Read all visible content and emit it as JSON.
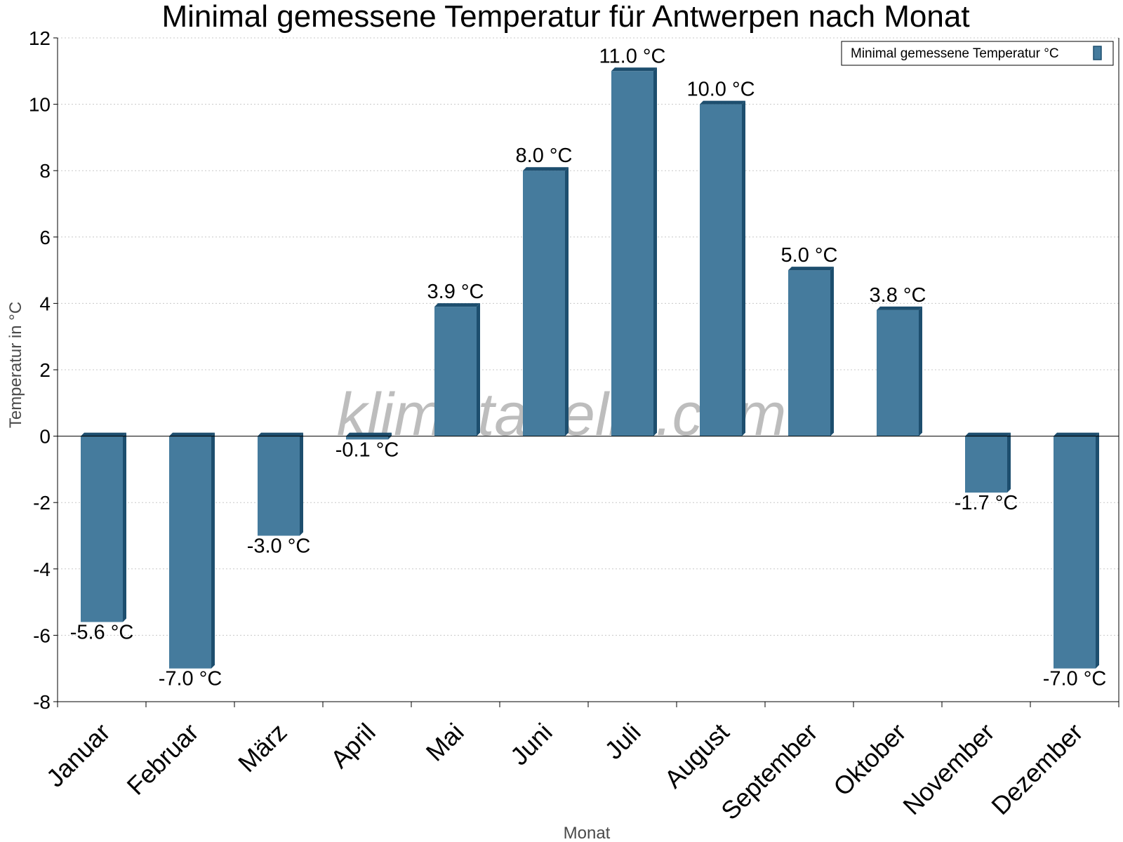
{
  "chart_data": {
    "type": "bar",
    "title": "Minimal gemessene Temperatur für Antwerpen nach Monat",
    "xlabel": "Monat",
    "ylabel": "Temperatur in °C",
    "ylim": [
      -8,
      12
    ],
    "yticks": [
      12,
      10,
      8,
      6,
      4,
      2,
      0,
      -2,
      -4,
      -6,
      -8
    ],
    "grid": true,
    "legend_position": "top-right",
    "watermark": "klimatabelle.com",
    "categories": [
      "Januar",
      "Februar",
      "März",
      "April",
      "Mai",
      "Juni",
      "Juli",
      "August",
      "September",
      "Oktober",
      "November",
      "Dezember"
    ],
    "series": [
      {
        "name": "Minimal gemessene Temperatur °C",
        "values": [
          -5.6,
          -7.0,
          -3.0,
          -0.1,
          3.9,
          8.0,
          11.0,
          10.0,
          5.0,
          3.8,
          -1.7,
          -7.0
        ],
        "labels": [
          "-5.6 °C",
          "-7.0 °C",
          "-3.0 °C",
          "-0.1 °C",
          "3.9 °C",
          "8.0 °C",
          "11.0 °C",
          "10.0 °C",
          "5.0 °C",
          "3.8 °C",
          "-1.7 °C",
          "-7.0 °C"
        ],
        "color": "#457b9d",
        "side_color": "#1d4e6e"
      }
    ]
  }
}
